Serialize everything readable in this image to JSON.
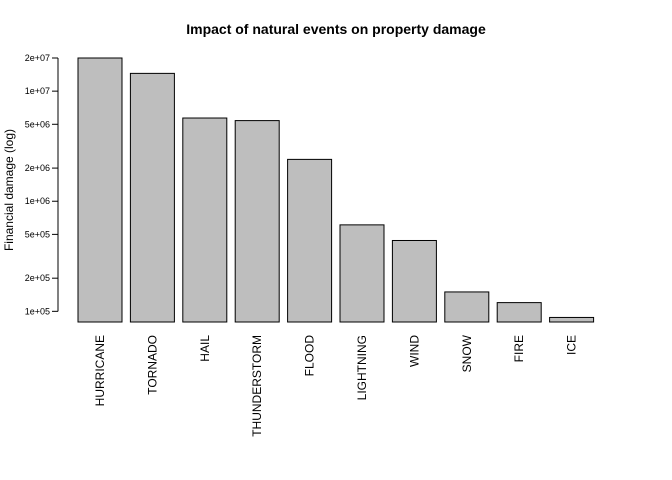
{
  "chart_data": {
    "type": "bar",
    "title": "Impact of natural events on property damage",
    "ylabel": "Financial damage (log)",
    "xlabel": "",
    "yscale": "log",
    "ylim": [
      80000,
      20000000
    ],
    "bar_color": "#bebebe",
    "categories": [
      "HURRICANE",
      "TORNADO",
      "HAIL",
      "THUNDERSTORM",
      "FLOOD",
      "LIGHTNING",
      "WIND",
      "SNOW",
      "FIRE",
      "ICE"
    ],
    "values": [
      20000000,
      14500000,
      5700000,
      5400000,
      2400000,
      610000,
      440000,
      150000,
      120000,
      88000
    ],
    "yticks": [
      {
        "value": 100000,
        "label": "1e+05"
      },
      {
        "value": 200000,
        "label": "2e+05"
      },
      {
        "value": 500000,
        "label": "5e+05"
      },
      {
        "value": 1000000,
        "label": "1e+06"
      },
      {
        "value": 2000000,
        "label": "2e+06"
      },
      {
        "value": 5000000,
        "label": "5e+06"
      },
      {
        "value": 10000000,
        "label": "1e+07"
      },
      {
        "value": 20000000,
        "label": "2e+07"
      }
    ]
  }
}
